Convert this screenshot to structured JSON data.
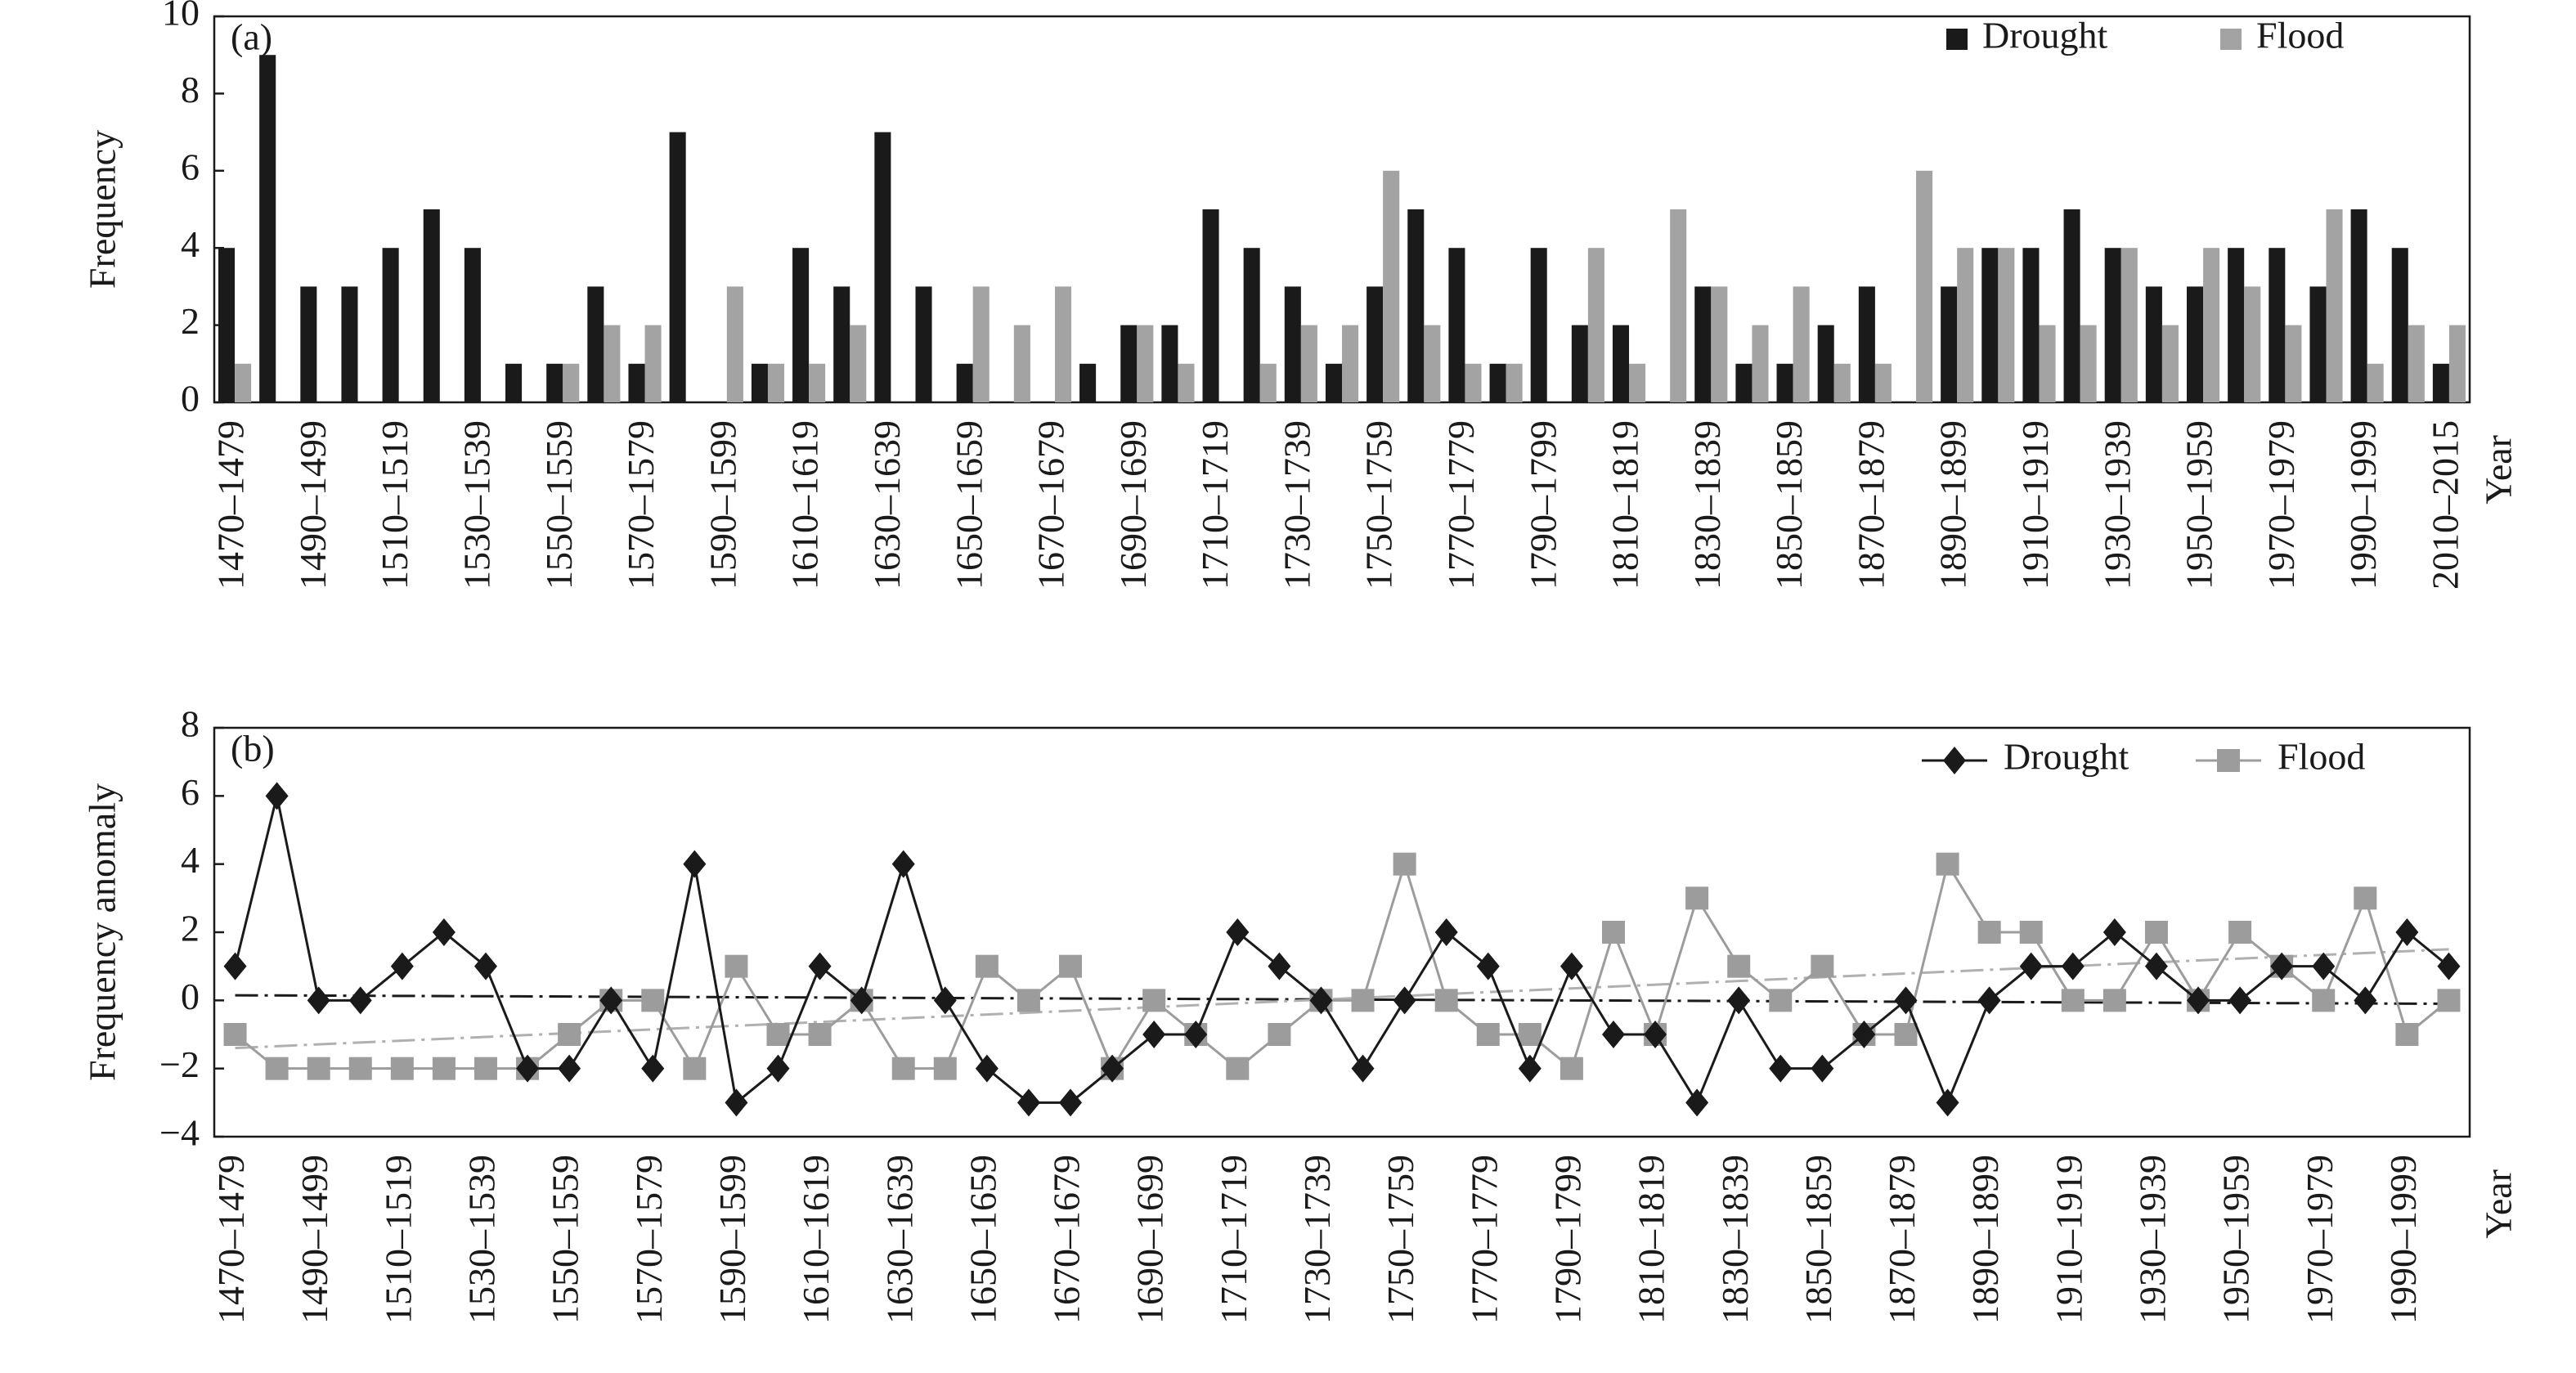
{
  "chart_data": [
    {
      "type": "bar",
      "panel_label": "(a)",
      "ylabel": "Frequency",
      "xlabel": "Year",
      "categories": [
        "1470–1479",
        null,
        "1490–1499",
        null,
        "1510–1519",
        null,
        "1530–1539",
        null,
        "1550–1559",
        null,
        "1570–1579",
        null,
        "1590–1599",
        null,
        "1610–1619",
        null,
        "1630–1639",
        null,
        "1650–1659",
        null,
        "1670–1679",
        null,
        "1690–1699",
        null,
        "1710–1719",
        null,
        "1730–1739",
        null,
        "1750–1759",
        null,
        "1770–1779",
        null,
        "1790–1799",
        null,
        "1810–1819",
        null,
        "1830–1839",
        null,
        "1850–1859",
        null,
        "1870–1879",
        null,
        "1890–1899",
        null,
        "1910–1919",
        null,
        "1930–1939",
        null,
        "1950–1959",
        null,
        "1970–1979",
        null,
        "1990–1999",
        null,
        "2010–2015"
      ],
      "series": [
        {
          "name": "Drought",
          "color": "#1a1a1a",
          "values": [
            4,
            9,
            3,
            3,
            4,
            5,
            4,
            1,
            1,
            3,
            1,
            7,
            0,
            1,
            4,
            3,
            7,
            3,
            1,
            0,
            0,
            1,
            2,
            2,
            5,
            4,
            3,
            1,
            3,
            5,
            4,
            1,
            4,
            2,
            2,
            0,
            3,
            1,
            1,
            2,
            3,
            0,
            3,
            4,
            4,
            5,
            4,
            3,
            3,
            4,
            4,
            3,
            5,
            4,
            1
          ]
        },
        {
          "name": "Flood",
          "color": "#a3a3a3",
          "values": [
            1,
            0,
            0,
            0,
            0,
            0,
            0,
            0,
            1,
            2,
            2,
            0,
            3,
            1,
            1,
            2,
            0,
            0,
            3,
            2,
            3,
            0,
            2,
            1,
            0,
            1,
            2,
            2,
            6,
            2,
            1,
            1,
            0,
            4,
            1,
            5,
            3,
            2,
            3,
            1,
            1,
            6,
            4,
            4,
            2,
            2,
            4,
            2,
            4,
            3,
            2,
            5,
            1,
            2,
            2
          ]
        }
      ],
      "ylim": [
        0,
        10
      ],
      "yticks": [
        0,
        2,
        4,
        6,
        8,
        10
      ],
      "legend": "upper right"
    },
    {
      "type": "line",
      "panel_label": "(b)",
      "ylabel": "Frequency anomaly",
      "xlabel": "Year",
      "categories": [
        "1470–1479",
        null,
        "1490–1499",
        null,
        "1510–1519",
        null,
        "1530–1539",
        null,
        "1550–1559",
        null,
        "1570–1579",
        null,
        "1590–1599",
        null,
        "1610–1619",
        null,
        "1630–1639",
        null,
        "1650–1659",
        null,
        "1670–1679",
        null,
        "1690–1699",
        null,
        "1710–1719",
        null,
        "1730–1739",
        null,
        "1750–1759",
        null,
        "1770–1779",
        null,
        "1790–1799",
        null,
        "1810–1819",
        null,
        "1830–1839",
        null,
        "1850–1859",
        null,
        "1870–1879",
        null,
        "1890–1899",
        null,
        "1910–1919",
        null,
        "1930–1939",
        null,
        "1950–1959",
        null,
        "1970–1979",
        null,
        "1990–1999",
        null
      ],
      "series": [
        {
          "name": "Drought",
          "color": "#1a1a1a",
          "marker": "diamond",
          "values": [
            1,
            6,
            0,
            0,
            1,
            2,
            1,
            -2,
            -2,
            0,
            -2,
            4,
            -3,
            -2,
            1,
            0,
            4,
            0,
            -2,
            -3,
            -3,
            -2,
            -1,
            -1,
            2,
            1,
            0,
            -2,
            0,
            2,
            1,
            -2,
            1,
            -1,
            -1,
            -3,
            0,
            -2,
            -2,
            -1,
            0,
            -3,
            0,
            1,
            1,
            2,
            1,
            0,
            0,
            1,
            1,
            0,
            2,
            1
          ]
        },
        {
          "name": "Flood",
          "color": "#9c9c9c",
          "marker": "square",
          "values": [
            -1,
            -2,
            -2,
            -2,
            -2,
            -2,
            -2,
            -2,
            -1,
            0,
            0,
            -2,
            1,
            -1,
            -1,
            0,
            -2,
            -2,
            1,
            0,
            1,
            -2,
            0,
            -1,
            -2,
            -1,
            0,
            0,
            4,
            0,
            -1,
            -1,
            -2,
            2,
            -1,
            3,
            1,
            0,
            1,
            -1,
            -1,
            4,
            2,
            2,
            0,
            0,
            2,
            0,
            2,
            1,
            0,
            3,
            -1,
            0
          ]
        }
      ],
      "trend_lines": [
        {
          "color": "#1a1a1a",
          "start": 0.15,
          "end": -0.1
        },
        {
          "color": "#b0b0b0",
          "start": -1.4,
          "end": 1.5
        }
      ],
      "ylim": [
        -4,
        8
      ],
      "yticks": [
        {
          "value": -4,
          "label": "−4"
        },
        {
          "value": -2,
          "label": "−2"
        },
        0,
        2,
        4,
        6,
        8
      ],
      "legend": "upper right"
    }
  ]
}
